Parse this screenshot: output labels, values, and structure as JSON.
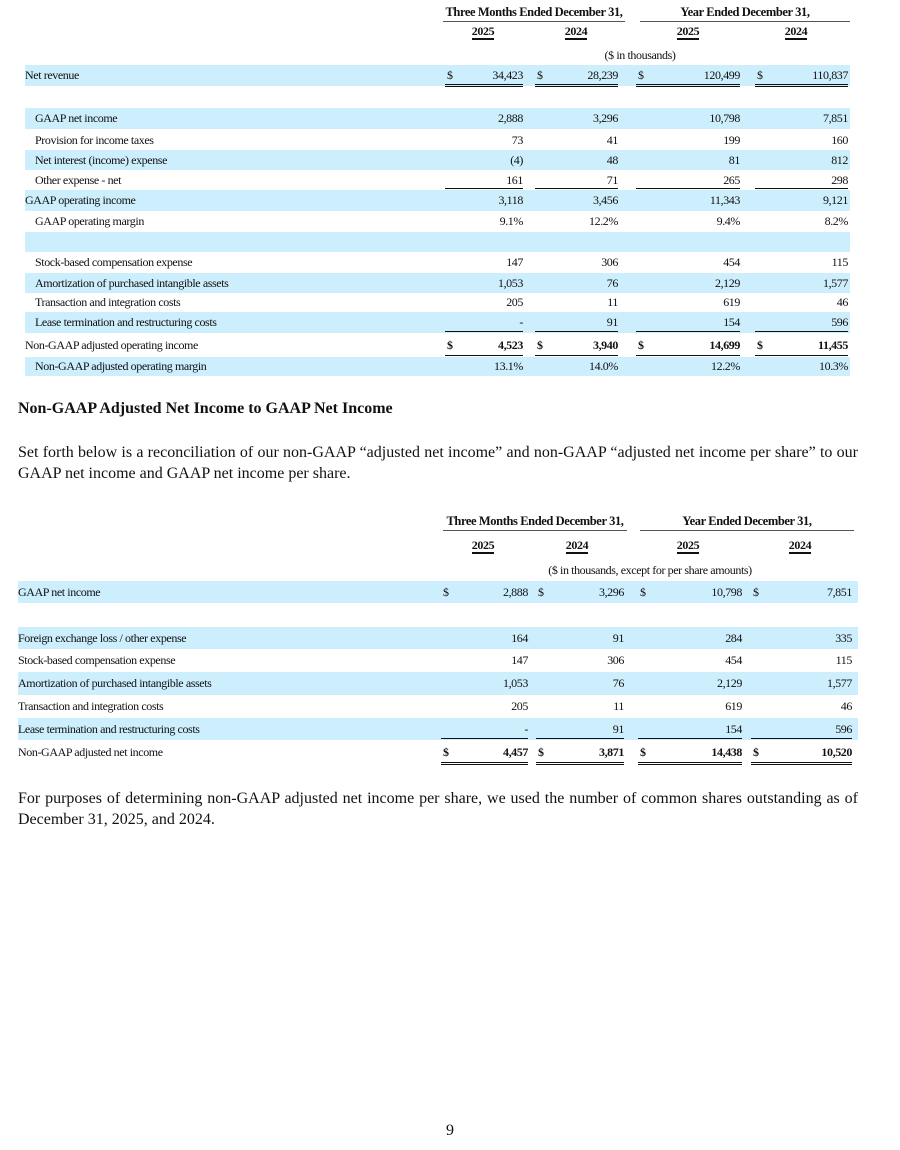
{
  "table1": {
    "group_headers": [
      "Three Months Ended December 31,",
      "Year Ended December 31,"
    ],
    "years": [
      "2025",
      "2024",
      "2025",
      "2024"
    ],
    "units": "($ in thousands)",
    "rows": [
      {
        "label": "Net revenue",
        "indent": false,
        "band": true,
        "dollar": true,
        "values": [
          "34,423",
          "28,239",
          "120,499",
          "110,837"
        ],
        "rule": "double",
        "bold": false
      },
      {
        "label": "",
        "indent": false,
        "band": false,
        "dollar": false,
        "values": [
          "",
          "",
          "",
          ""
        ],
        "rule": "",
        "bold": false
      },
      {
        "label": "GAAP net income",
        "indent": true,
        "band": true,
        "dollar": false,
        "values": [
          "2,888",
          "3,296",
          "10,798",
          "7,851"
        ],
        "rule": "",
        "bold": false
      },
      {
        "label": "Provision for income taxes",
        "indent": true,
        "band": false,
        "dollar": false,
        "values": [
          "73",
          "41",
          "199",
          "160"
        ],
        "rule": "",
        "bold": false
      },
      {
        "label": "Net interest (income) expense",
        "indent": true,
        "band": true,
        "dollar": false,
        "values": [
          "(4)",
          "48",
          "81",
          "812"
        ],
        "rule": "",
        "bold": false
      },
      {
        "label": "Other expense - net",
        "indent": true,
        "band": false,
        "dollar": false,
        "values": [
          "161",
          "71",
          "265",
          "298"
        ],
        "rule": "single",
        "bold": false
      },
      {
        "label": "GAAP operating income",
        "indent": false,
        "band": true,
        "dollar": false,
        "values": [
          "3,118",
          "3,456",
          "11,343",
          "9,121"
        ],
        "rule": "",
        "bold": false
      },
      {
        "label": "GAAP operating margin",
        "indent": true,
        "band": false,
        "dollar": false,
        "values": [
          "9.1%",
          "12.2%",
          "9.4%",
          "8.2%"
        ],
        "rule": "",
        "bold": false
      },
      {
        "label": "",
        "indent": false,
        "band": true,
        "dollar": false,
        "values": [
          "",
          "",
          "",
          ""
        ],
        "rule": "",
        "bold": false
      },
      {
        "label": "Stock-based compensation expense",
        "indent": true,
        "band": false,
        "dollar": false,
        "values": [
          "147",
          "306",
          "454",
          "115"
        ],
        "rule": "",
        "bold": false
      },
      {
        "label": "Amortization of purchased intangible assets",
        "indent": true,
        "band": true,
        "dollar": false,
        "values": [
          "1,053",
          "76",
          "2,129",
          "1,577"
        ],
        "rule": "",
        "bold": false
      },
      {
        "label": "Transaction and integration costs",
        "indent": true,
        "band": false,
        "dollar": false,
        "values": [
          "205",
          "11",
          "619",
          "46"
        ],
        "rule": "",
        "bold": false
      },
      {
        "label": "Lease termination and restructuring costs",
        "indent": true,
        "band": true,
        "dollar": false,
        "values": [
          "-",
          "91",
          "154",
          "596"
        ],
        "rule": "single",
        "bold": false
      },
      {
        "label": "Non-GAAP adjusted operating income",
        "indent": false,
        "band": false,
        "dollar": true,
        "values": [
          "4,523",
          "3,940",
          "14,699",
          "11,455"
        ],
        "rule": "double",
        "bold": true
      },
      {
        "label": "Non-GAAP adjusted operating margin",
        "indent": true,
        "band": true,
        "dollar": false,
        "values": [
          "13.1%",
          "14.0%",
          "12.2%",
          "10.3%"
        ],
        "rule": "",
        "bold": false
      }
    ]
  },
  "section_heading": "Non-GAAP Adjusted Net Income to GAAP Net Income",
  "intro_paragraph": "Set forth below is a reconciliation of our non-GAAP “adjusted net income” and non-GAAP “adjusted net income per share” to our GAAP net income and GAAP net income per share.",
  "table2": {
    "group_headers": [
      "Three Months Ended December 31,",
      "Year Ended December 31,"
    ],
    "years": [
      "2025",
      "2024",
      "2025",
      "2024"
    ],
    "units": "($ in thousands, except for per share amounts)",
    "rows": [
      {
        "label": "GAAP net income",
        "indent": false,
        "band": true,
        "dollar": true,
        "values": [
          "2,888",
          "3,296",
          "10,798",
          "7,851"
        ],
        "rule": "",
        "bold": false
      },
      {
        "label": "",
        "indent": false,
        "band": false,
        "dollar": false,
        "values": [
          "",
          "",
          "",
          ""
        ],
        "rule": "",
        "bold": false
      },
      {
        "label": "Foreign exchange loss / other expense",
        "indent": false,
        "band": true,
        "dollar": false,
        "values": [
          "164",
          "91",
          "284",
          "335"
        ],
        "rule": "",
        "bold": false
      },
      {
        "label": "Stock-based compensation expense",
        "indent": false,
        "band": false,
        "dollar": false,
        "values": [
          "147",
          "306",
          "454",
          "115"
        ],
        "rule": "",
        "bold": false
      },
      {
        "label": "Amortization of purchased intangible assets",
        "indent": false,
        "band": true,
        "dollar": false,
        "values": [
          "1,053",
          "76",
          "2,129",
          "1,577"
        ],
        "rule": "",
        "bold": false
      },
      {
        "label": "Transaction and integration costs",
        "indent": false,
        "band": false,
        "dollar": false,
        "values": [
          "205",
          "11",
          "619",
          "46"
        ],
        "rule": "",
        "bold": false
      },
      {
        "label": "Lease termination and restructuring costs",
        "indent": false,
        "band": true,
        "dollar": false,
        "values": [
          "-",
          "91",
          "154",
          "596"
        ],
        "rule": "single",
        "bold": false
      },
      {
        "label": "Non-GAAP adjusted net income",
        "indent": false,
        "band": false,
        "dollar": true,
        "values": [
          "4,457",
          "3,871",
          "14,438",
          "10,520"
        ],
        "rule": "double",
        "bold": true
      }
    ]
  },
  "closing_paragraph": "For purposes of determining non-GAAP adjusted net income per share, we used the number of common shares outstanding as of December 31, 2025, and 2024.",
  "page_number": "9",
  "colors": {
    "band": "#cdeefc"
  }
}
